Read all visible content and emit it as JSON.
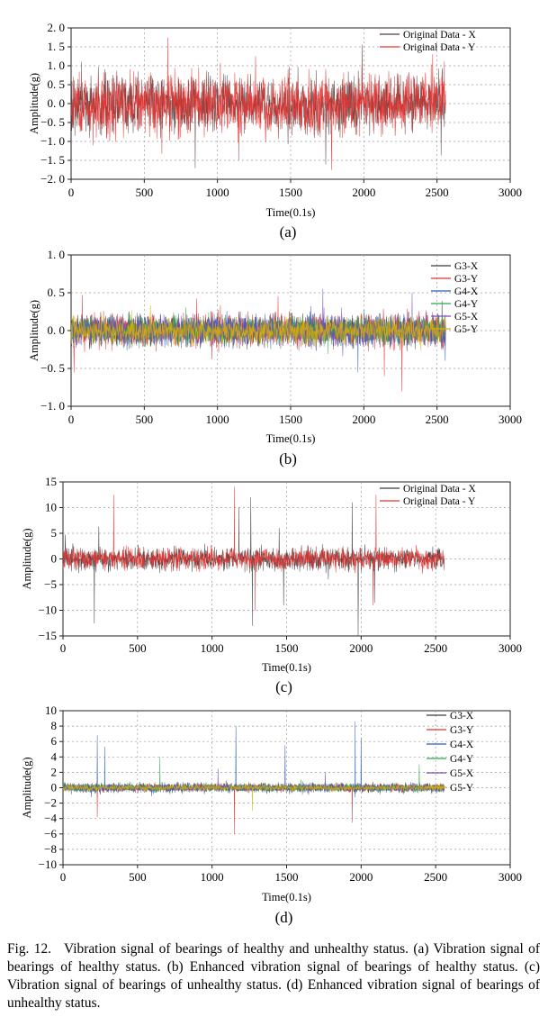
{
  "chart_data": [
    {
      "type": "line",
      "panel_label": "(a)",
      "xlabel": "Time(0.1s)",
      "ylabel": "Amplitude(g)",
      "xlim": [
        0,
        3000
      ],
      "ylim": [
        -2.0,
        2.0
      ],
      "x_ticks": [
        0,
        500,
        1000,
        1500,
        2000,
        2500,
        3000
      ],
      "y_ticks": [
        -2.0,
        -1.5,
        -1.0,
        -0.5,
        0.0,
        0.5,
        1.0,
        1.5,
        2.0
      ],
      "y_tick_labels": [
        "−2. 0",
        "−1. 5",
        "−1. 0",
        "−0. 5",
        "0. 0",
        "0. 5",
        "1. 0",
        "1. 5",
        "2. 0"
      ],
      "grid": true,
      "legend_position": "top-right",
      "series": [
        {
          "name": "Original Data - X",
          "color": "#5a3a3a",
          "n": 2560,
          "amplitude": 0.45,
          "spikes": [
            [
              70,
              1.1
            ],
            [
              1740,
              -1.6
            ]
          ]
        },
        {
          "name": "Original Data - Y",
          "color": "#e8302d",
          "n": 2560,
          "amplitude": 0.5,
          "spikes": [
            [
              660,
              1.75
            ],
            [
              1260,
              1.25
            ],
            [
              150,
              -1.1
            ],
            [
              1780,
              -1.75
            ],
            [
              2470,
              1.3
            ]
          ]
        }
      ]
    },
    {
      "type": "line",
      "panel_label": "(b)",
      "xlabel": "Time(0.1s)",
      "ylabel": "Amplitude(g)",
      "xlim": [
        0,
        3000
      ],
      "ylim": [
        -1.0,
        1.0
      ],
      "x_ticks": [
        0,
        500,
        1000,
        1500,
        2000,
        2500,
        3000
      ],
      "y_ticks": [
        -1.0,
        -0.5,
        0.0,
        0.5,
        1.0
      ],
      "y_tick_labels": [
        "−1. 0",
        "−0. 5",
        "0. 0",
        "0. 5",
        "1. 0"
      ],
      "grid": true,
      "legend_position": "right",
      "series": [
        {
          "name": "G3-X",
          "color": "#3b3b3b",
          "n": 2560,
          "amplitude": 0.12,
          "spikes": []
        },
        {
          "name": "G3-Y",
          "color": "#e8302d",
          "n": 2560,
          "amplitude": 0.13,
          "spikes": [
            [
              20,
              -0.55
            ],
            [
              2140,
              -0.6
            ],
            [
              2260,
              -0.8
            ]
          ]
        },
        {
          "name": "G4-X",
          "color": "#2b5fb8",
          "n": 2560,
          "amplitude": 0.12,
          "spikes": [
            [
              1960,
              -0.55
            ]
          ]
        },
        {
          "name": "G4-Y",
          "color": "#2aa84a",
          "n": 2560,
          "amplitude": 0.11,
          "spikes": []
        },
        {
          "name": "G5-X",
          "color": "#7b4fc0",
          "n": 2560,
          "amplitude": 0.11,
          "spikes": [
            [
              1720,
              0.55
            ],
            [
              2330,
              0.5
            ]
          ]
        },
        {
          "name": "G5-Y",
          "color": "#d8b000",
          "n": 2560,
          "amplitude": 0.1,
          "spikes": []
        }
      ]
    },
    {
      "type": "line",
      "panel_label": "(c)",
      "xlabel": "Time(0.1s)",
      "ylabel": "Amplitude(g)",
      "xlim": [
        0,
        3000
      ],
      "ylim": [
        -15,
        15
      ],
      "x_ticks": [
        0,
        500,
        1000,
        1500,
        2000,
        2500,
        3000
      ],
      "y_ticks": [
        -15,
        -10,
        -5,
        0,
        5,
        10,
        15
      ],
      "y_tick_labels": [
        "−15",
        "−10",
        "−5",
        "0",
        "5",
        "10",
        "15"
      ],
      "grid": true,
      "legend_position": "top-right",
      "series": [
        {
          "name": "Original Data - X",
          "color": "#3b3b3b",
          "n": 2560,
          "amplitude": 1.3,
          "spikes": [
            [
              210,
              -12.5
            ],
            [
              240,
              6.3
            ],
            [
              1180,
              10
            ],
            [
              1260,
              12
            ],
            [
              1270,
              -13
            ],
            [
              1450,
              6
            ],
            [
              1480,
              -9
            ],
            [
              1940,
              11
            ],
            [
              1980,
              -15
            ],
            [
              2090,
              -8.5
            ]
          ]
        },
        {
          "name": "Original Data - Y",
          "color": "#e8302d",
          "n": 2560,
          "amplitude": 1.3,
          "spikes": [
            [
              340,
              12.5
            ],
            [
              1150,
              14
            ],
            [
              2100,
              12.5
            ],
            [
              1290,
              -10
            ],
            [
              2080,
              -9
            ]
          ]
        }
      ]
    },
    {
      "type": "line",
      "panel_label": "(d)",
      "xlabel": "Time(0.1s)",
      "ylabel": "Amplitude(g)",
      "xlim": [
        0,
        3000
      ],
      "ylim": [
        -10,
        10
      ],
      "x_ticks": [
        0,
        500,
        1000,
        1500,
        2000,
        2500,
        3000
      ],
      "y_ticks": [
        -10,
        -8,
        -6,
        -4,
        -2,
        0,
        2,
        4,
        6,
        8,
        10
      ],
      "y_tick_labels": [
        "−10",
        "−8",
        "−6",
        "−4",
        "−2",
        "0",
        "2",
        "4",
        "6",
        "8",
        "10"
      ],
      "grid": true,
      "legend_position": "right",
      "series": [
        {
          "name": "G3-X",
          "color": "#3b3b3b",
          "n": 2560,
          "amplitude": 0.35,
          "spikes": []
        },
        {
          "name": "G3-Y",
          "color": "#e8302d",
          "n": 2560,
          "amplitude": 0.3,
          "spikes": [
            [
              230,
              -3.8
            ],
            [
              1150,
              -6
            ],
            [
              1940,
              -4.5
            ]
          ]
        },
        {
          "name": "G4-X",
          "color": "#2b5fb8",
          "n": 2560,
          "amplitude": 0.35,
          "spikes": [
            [
              230,
              6.8
            ],
            [
              280,
              5.3
            ],
            [
              1160,
              8.0
            ],
            [
              1490,
              5.5
            ],
            [
              1960,
              8.6
            ],
            [
              2000,
              6.5
            ]
          ]
        },
        {
          "name": "G4-Y",
          "color": "#2aa84a",
          "n": 2560,
          "amplitude": 0.3,
          "spikes": [
            [
              650,
              4.0
            ],
            [
              2390,
              3.0
            ]
          ]
        },
        {
          "name": "G5-X",
          "color": "#7b4fc0",
          "n": 2560,
          "amplitude": 0.25,
          "spikes": [
            [
              1040,
              2.5
            ],
            [
              1760,
              2.0
            ]
          ]
        },
        {
          "name": "G5-Y",
          "color": "#d8b000",
          "n": 2560,
          "amplitude": 0.25,
          "spikes": [
            [
              1270,
              -3.0
            ]
          ]
        }
      ]
    }
  ],
  "caption": {
    "label": "Fig. 12.",
    "text": "Vibration signal of bearings of healthy and unhealthy status. (a) Vibration signal of bearings of healthy status. (b) Enhanced vibration signal of bearings of healthy status. (c) Vibration signal of bearings of unhealthy status. (d) Enhanced vibration signal of bearings of unhealthy status."
  }
}
